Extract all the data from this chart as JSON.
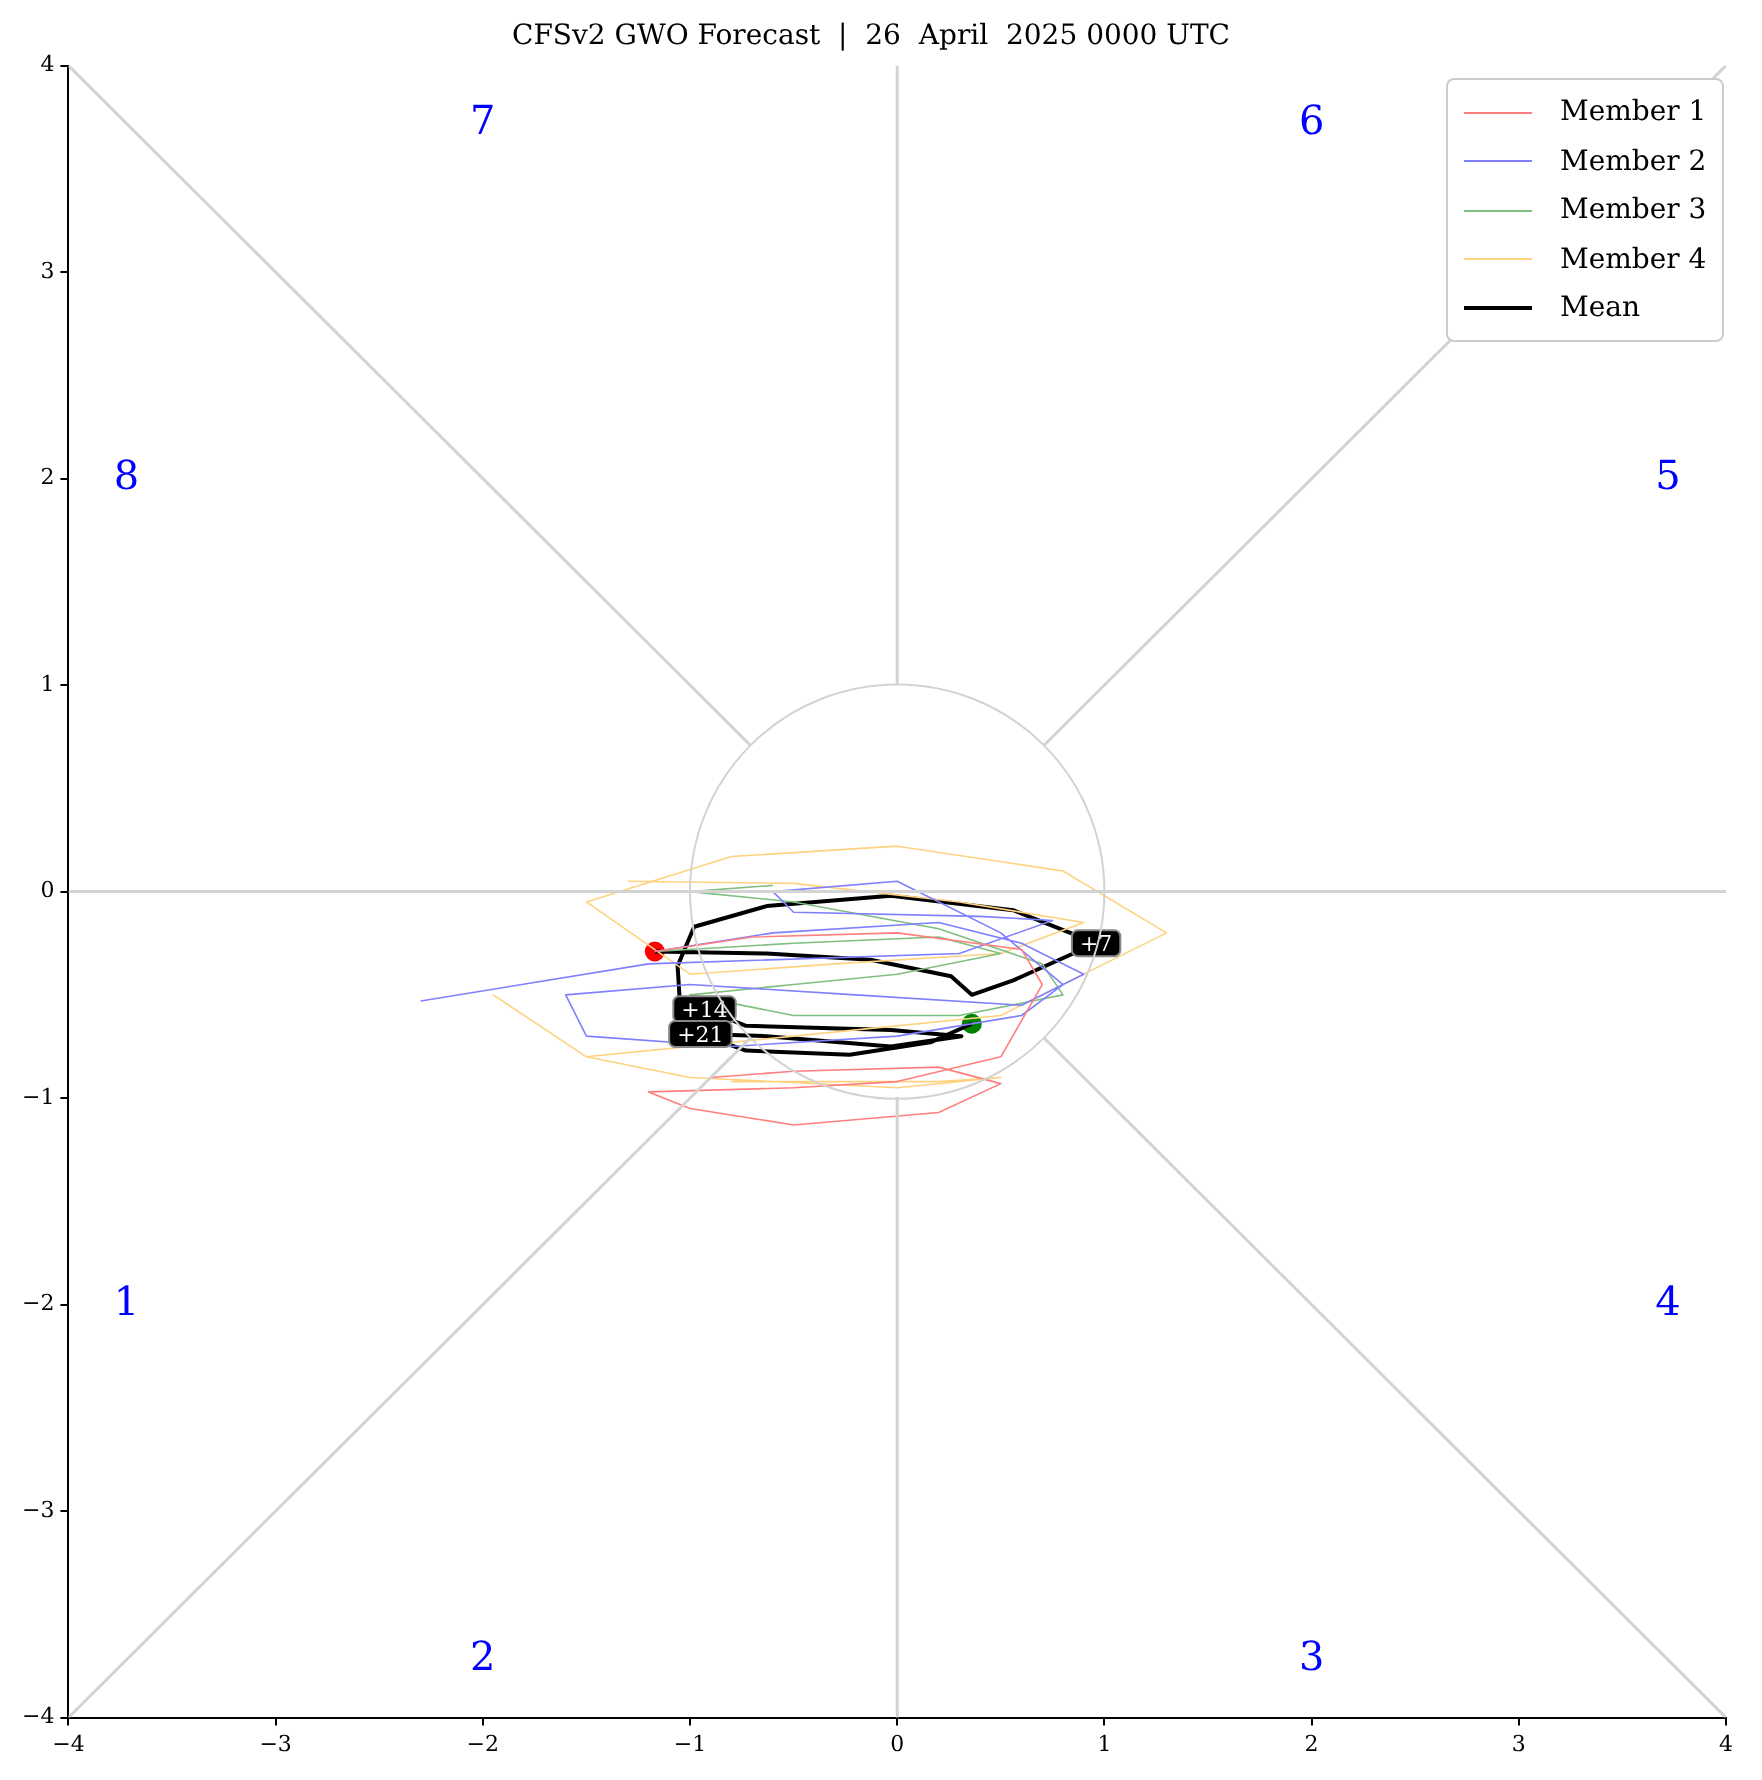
{
  "chart_data": {
    "type": "line",
    "title": "CFSv2 GWO Forecast  |  26  April  2025 0000 UTC",
    "xlim": [
      -4,
      4
    ],
    "ylim": [
      -4,
      4
    ],
    "xticks": [
      {
        "value": -4,
        "label": "−4"
      },
      {
        "value": -3,
        "label": "−3"
      },
      {
        "value": -2,
        "label": "−2"
      },
      {
        "value": -1,
        "label": "−1"
      },
      0,
      1,
      2,
      3,
      4
    ],
    "yticks": [
      {
        "value": -4,
        "label": "−4"
      },
      {
        "value": -3,
        "label": "−3"
      },
      {
        "value": -2,
        "label": "−2"
      },
      {
        "value": -1,
        "label": "−1"
      },
      0,
      1,
      2,
      3,
      4
    ],
    "grid": false,
    "legend": "top right",
    "marker": "none",
    "line_style": "solid",
    "annotations": [
      "1",
      "2",
      "3",
      "4",
      "5",
      "6",
      "7",
      "8",
      {
        "text": "+7",
        "x": 0.96,
        "y": -0.25
      },
      {
        "text": "+14",
        "x": -0.93,
        "y": -0.57
      },
      {
        "text": "+21",
        "x": -0.95,
        "y": -0.69
      }
    ],
    "series": [
      {
        "color": "#d3d3d3",
        "x": [
          -4,
          4
        ],
        "values": [
          0,
          0
        ]
      },
      {
        "color": "#d3d3d3",
        "x": [
          0,
          0
        ],
        "values": [
          1,
          4
        ]
      },
      {
        "color": "#d3d3d3",
        "x": [
          0,
          0
        ],
        "values": [
          -1,
          -4
        ]
      },
      {
        "color": "#d3d3d3",
        "x": [
          0.71,
          4
        ],
        "values": [
          0.71,
          4
        ]
      },
      {
        "color": "#d3d3d3",
        "x": [
          -0.71,
          -4
        ],
        "values": [
          0.71,
          4
        ]
      },
      {
        "color": "#d3d3d3",
        "x": [
          0.71,
          4
        ],
        "values": [
          -0.71,
          -4
        ]
      },
      {
        "color": "#d3d3d3",
        "x": [
          -0.71,
          -4
        ],
        "values": [
          -0.71,
          -4
        ]
      },
      {
        "name": "Member 1",
        "color": "#ff7f7f",
        "x": [
          -1.17,
          -0.7,
          0,
          0.6,
          0.7,
          0.5,
          0,
          -0.5,
          -1.2,
          -1.0,
          -0.5,
          0.2,
          0.5,
          0.2,
          -0.5,
          -0.9
        ],
        "values": [
          -0.29,
          -0.22,
          -0.2,
          -0.28,
          -0.45,
          -0.8,
          -0.92,
          -0.95,
          -0.97,
          -1.05,
          -1.13,
          -1.07,
          -0.93,
          -0.85,
          -0.87,
          -0.9
        ]
      },
      {
        "name": "Member 2",
        "color": "#7f7fff",
        "x": [
          -1.17,
          -0.6,
          0.2,
          0.6,
          0.9,
          0.6,
          -0.2,
          -1.0,
          -1.6,
          -1.5,
          -0.8,
          0,
          0.6,
          0.8,
          0.5,
          0,
          -0.6,
          -0.5,
          0.4,
          0.75,
          0.3,
          -1.2,
          -2.3
        ],
        "values": [
          -0.29,
          -0.2,
          -0.15,
          -0.25,
          -0.4,
          -0.55,
          -0.5,
          -0.45,
          -0.5,
          -0.7,
          -0.75,
          -0.7,
          -0.6,
          -0.45,
          -0.2,
          0.05,
          0.0,
          -0.1,
          -0.12,
          -0.14,
          -0.3,
          -0.35,
          -0.53
        ]
      },
      {
        "name": "Member 3",
        "color": "#7fbf7f",
        "x": [
          -1.17,
          -0.5,
          0.2,
          0.5,
          0,
          -0.5,
          -1.0,
          -0.5,
          0.3,
          0.8,
          0.7,
          0.2,
          -0.5,
          -1.0,
          -0.6
        ],
        "values": [
          -0.29,
          -0.25,
          -0.22,
          -0.3,
          -0.4,
          -0.45,
          -0.5,
          -0.6,
          -0.6,
          -0.5,
          -0.35,
          -0.18,
          -0.05,
          0.0,
          0.03
        ]
      },
      {
        "name": "Member 4",
        "color": "#ffd27f",
        "x": [
          -1.3,
          -0.5,
          0.3,
          0.9,
          0.5,
          -0.3,
          -1.0,
          -1.5,
          -0.8,
          0,
          0.8,
          1.3,
          0.5,
          -0.5,
          -1.5,
          -1.95,
          -1.5,
          -1.0,
          0,
          0.5,
          0.2,
          -0.8
        ],
        "values": [
          0.05,
          0.04,
          -0.05,
          -0.15,
          -0.3,
          -0.35,
          -0.4,
          -0.05,
          0.17,
          0.22,
          0.1,
          -0.2,
          -0.6,
          -0.7,
          -0.8,
          -0.5,
          -0.8,
          -0.9,
          -0.95,
          -0.9,
          -0.92,
          -0.92
        ]
      },
      {
        "name": "Mean",
        "color": "#000000",
        "x": [
          -1.17,
          -0.63,
          -0.13,
          0.26,
          0.36,
          0.56,
          0.96,
          0.56,
          -0.03,
          -0.63,
          -0.98,
          -1.06,
          -1.05,
          -0.93,
          -0.73,
          -0.03,
          0.31,
          -0.03,
          -0.63,
          -0.95,
          -0.73,
          -0.23,
          0.16,
          0.36
        ],
        "values": [
          -0.29,
          -0.3,
          -0.33,
          -0.41,
          -0.5,
          -0.43,
          -0.25,
          -0.09,
          -0.02,
          -0.07,
          -0.17,
          -0.36,
          -0.52,
          -0.57,
          -0.65,
          -0.67,
          -0.7,
          -0.75,
          -0.7,
          -0.69,
          -0.77,
          -0.79,
          -0.73,
          -0.64
        ]
      },
      {
        "type": "scatter",
        "color": "#ff0000",
        "x": [
          -1.17
        ],
        "values": [
          -0.29
        ],
        "marker": "circle"
      },
      {
        "type": "scatter",
        "color": "#008000",
        "x": [
          0.36
        ],
        "values": [
          -0.64
        ],
        "marker": "circle"
      }
    ]
  }
}
